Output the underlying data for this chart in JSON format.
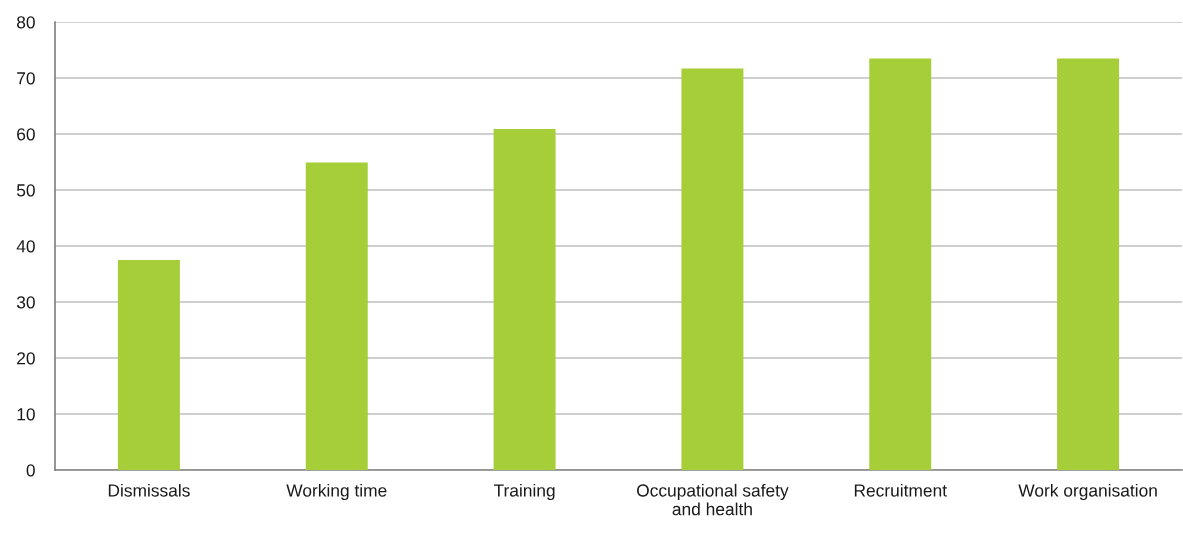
{
  "chart_data": {
    "type": "bar",
    "categories": [
      "Dismissals",
      "Working time",
      "Training",
      "Occupational safety\nand health",
      "Recruitment",
      "Work organisation"
    ],
    "values": [
      37.5,
      54.9,
      60.9,
      71.7,
      73.5,
      73.5
    ],
    "color": "#a6ce39",
    "ylim": [
      0,
      80
    ],
    "yticks": [
      0,
      10,
      20,
      30,
      40,
      50,
      60,
      70,
      80
    ],
    "grid": "y",
    "legend": false
  }
}
